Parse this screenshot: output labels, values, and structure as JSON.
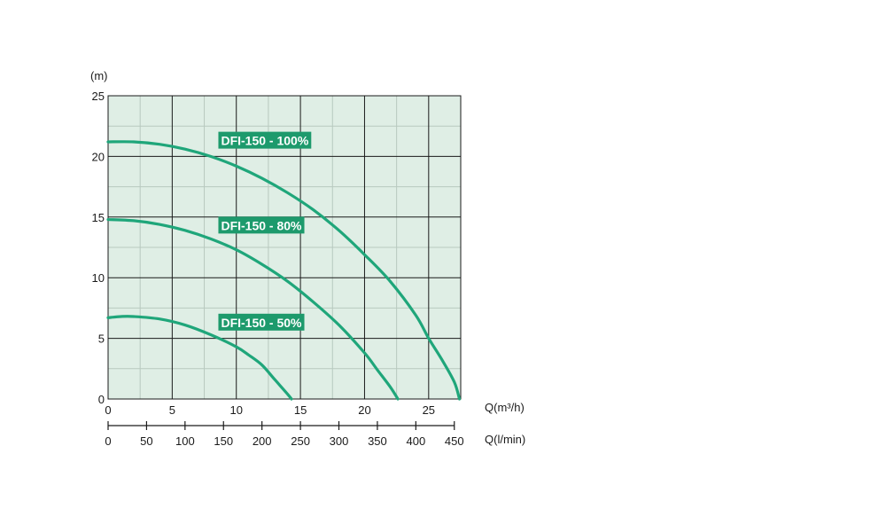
{
  "chart_data": {
    "type": "line",
    "plot_background": "#dfeee5",
    "grid_major_color": "#1a1a1a",
    "grid_minor_color": "#b8c9bf",
    "curve_color": "#1fa67a",
    "label_bg_color": "#1d9a6c",
    "y_unit_label": "(m)",
    "x_unit_label": "Q(m³/h)",
    "x2_unit_label": "Q(l/min)",
    "xlim": [
      0,
      27.5
    ],
    "ylim": [
      0,
      25
    ],
    "x_ticks": [
      0,
      5,
      10,
      15,
      20,
      25
    ],
    "y_ticks": [
      0,
      5,
      10,
      15,
      20,
      25
    ],
    "x2_ticks": [
      0,
      50,
      100,
      150,
      200,
      250,
      300,
      350,
      400,
      450
    ],
    "x2_per_x": 16.6667,
    "series": [
      {
        "name": "DFI-150 - 100%",
        "x": [
          0,
          2,
          4,
          6,
          8,
          10,
          12,
          14,
          16,
          18,
          20,
          22,
          24,
          25,
          26,
          27,
          27.4
        ],
        "y": [
          21.2,
          21.2,
          21.0,
          20.6,
          20.0,
          19.2,
          18.2,
          17.0,
          15.6,
          13.9,
          11.9,
          9.7,
          6.9,
          5.0,
          3.3,
          1.4,
          0
        ]
      },
      {
        "name": "DFI-150 - 80%",
        "x": [
          0,
          2,
          4,
          6,
          8,
          10,
          12,
          14,
          16,
          18,
          20,
          21,
          22,
          22.6
        ],
        "y": [
          14.8,
          14.7,
          14.4,
          13.9,
          13.2,
          12.3,
          11.1,
          9.7,
          8.0,
          6.1,
          3.8,
          2.4,
          1.0,
          0
        ]
      },
      {
        "name": "DFI-150 - 50%",
        "x": [
          0,
          1,
          2,
          4,
          6,
          8,
          10,
          11,
          12,
          13,
          14,
          14.3
        ],
        "y": [
          6.7,
          6.8,
          6.8,
          6.6,
          6.1,
          5.3,
          4.3,
          3.6,
          2.8,
          1.6,
          0.4,
          0
        ]
      }
    ],
    "annotations": [
      {
        "text": "DFI-150 - 100%",
        "x": 8.6,
        "y": 21.3
      },
      {
        "text": "DFI-150 - 80%",
        "x": 8.6,
        "y": 14.3
      },
      {
        "text": "DFI-150 - 50%",
        "x": 8.6,
        "y": 6.3
      }
    ]
  }
}
